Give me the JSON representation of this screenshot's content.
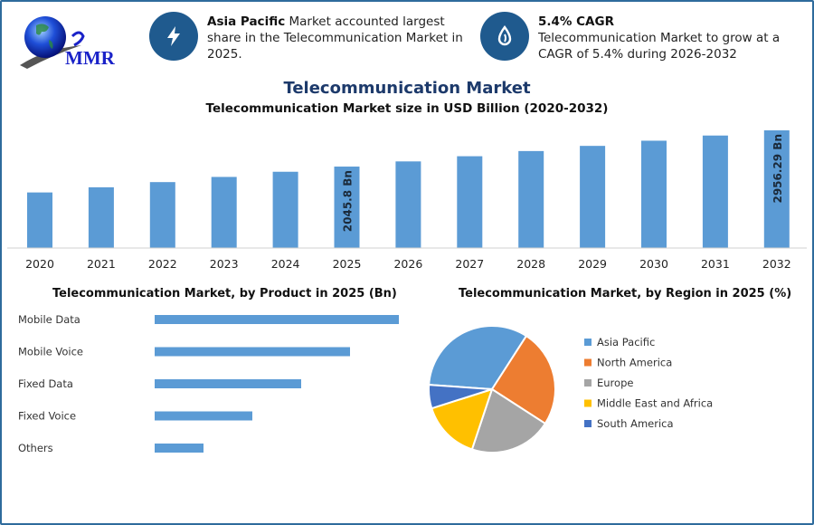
{
  "logo": {
    "text": "MMR"
  },
  "info1": {
    "bold": "Asia Pacific",
    "text": " Market accounted largest share in the Telecommunication Market in 2025.",
    "icon": "lightning-icon"
  },
  "info2": {
    "bold": "5.4% CAGR",
    "text": "Telecommunication Market to grow at a CAGR of 5.4% during 2026-2032",
    "icon": "drop-icon"
  },
  "colors": {
    "bar": "#5b9bd5",
    "accent": "#1f5a8e",
    "title": "#1d3a6b"
  },
  "chart_data": [
    {
      "type": "bar",
      "title": "Telecommunication Market",
      "subtitle": "Telecommunication Market size in USD Billion (2020-2032)",
      "categories": [
        "2020",
        "2021",
        "2022",
        "2023",
        "2024",
        "2025",
        "2026",
        "2027",
        "2028",
        "2029",
        "2030",
        "2031",
        "2032"
      ],
      "values": [
        1396,
        1526,
        1656,
        1786,
        1916,
        2045.8,
        2176,
        2306,
        2436,
        2566,
        2696,
        2826,
        2956.29
      ],
      "data_labels": {
        "2025": "2045.8 Bn",
        "2032": "2956.29 Bn"
      },
      "grid": false
    },
    {
      "type": "bar",
      "orientation": "horizontal",
      "title": "Telecommunication Market, by Product in 2025 (Bn)",
      "categories": [
        "Mobile Data",
        "Mobile Voice",
        "Fixed Data",
        "Fixed Voice",
        "Others"
      ],
      "values": [
        5,
        4,
        3,
        2,
        1
      ]
    },
    {
      "type": "pie",
      "title": "Telecommunication Market, by Region in 2025 (%)",
      "legend": "right",
      "slices": [
        {
          "name": "Asia Pacific",
          "value": 33,
          "color": "#5b9bd5"
        },
        {
          "name": "North America",
          "value": 25,
          "color": "#ed7d31"
        },
        {
          "name": "Europe",
          "value": 21,
          "color": "#a5a5a5"
        },
        {
          "name": "Middle East and Africa",
          "value": 15,
          "color": "#ffc000"
        },
        {
          "name": "South America",
          "value": 6,
          "color": "#4472c4"
        }
      ]
    }
  ]
}
